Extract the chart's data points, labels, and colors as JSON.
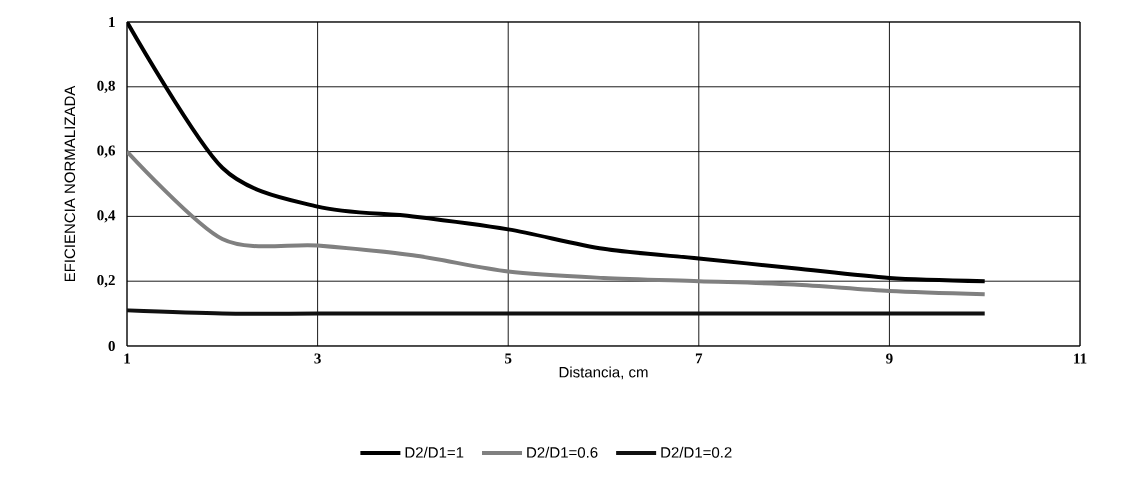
{
  "chart_data": {
    "type": "line",
    "xlabel": "Distancia, cm",
    "ylabel": "EFICIENCIA NORMALIZADA",
    "x": [
      1,
      2,
      3,
      4,
      5,
      6,
      7,
      8,
      9,
      10
    ],
    "series": [
      {
        "name": "D2/D1=1",
        "color": "#000000",
        "values": [
          1.0,
          0.55,
          0.43,
          0.4,
          0.36,
          0.3,
          0.27,
          0.24,
          0.21,
          0.2
        ]
      },
      {
        "name": "D2/D1=0.6",
        "color": "#808080",
        "values": [
          0.6,
          0.33,
          0.31,
          0.28,
          0.23,
          0.21,
          0.2,
          0.19,
          0.17,
          0.16
        ]
      },
      {
        "name": "D2/D1=0.2",
        "color": "#111111",
        "values": [
          0.11,
          0.1,
          0.1,
          0.1,
          0.1,
          0.1,
          0.1,
          0.1,
          0.1,
          0.1
        ]
      }
    ],
    "xlim": [
      1,
      11
    ],
    "xticks": [
      1,
      3,
      5,
      7,
      9,
      11
    ],
    "ylim": [
      0,
      1
    ],
    "yticks": [
      0,
      {
        "value": 0.2,
        "label": "0,2"
      },
      {
        "value": 0.4,
        "label": "0,4"
      },
      {
        "value": 0.6,
        "label": "0,6"
      },
      {
        "value": 0.8,
        "label": "0,8"
      },
      1
    ],
    "grid": true,
    "legend": "bottom",
    "marker": "none",
    "line_style": "solid"
  }
}
